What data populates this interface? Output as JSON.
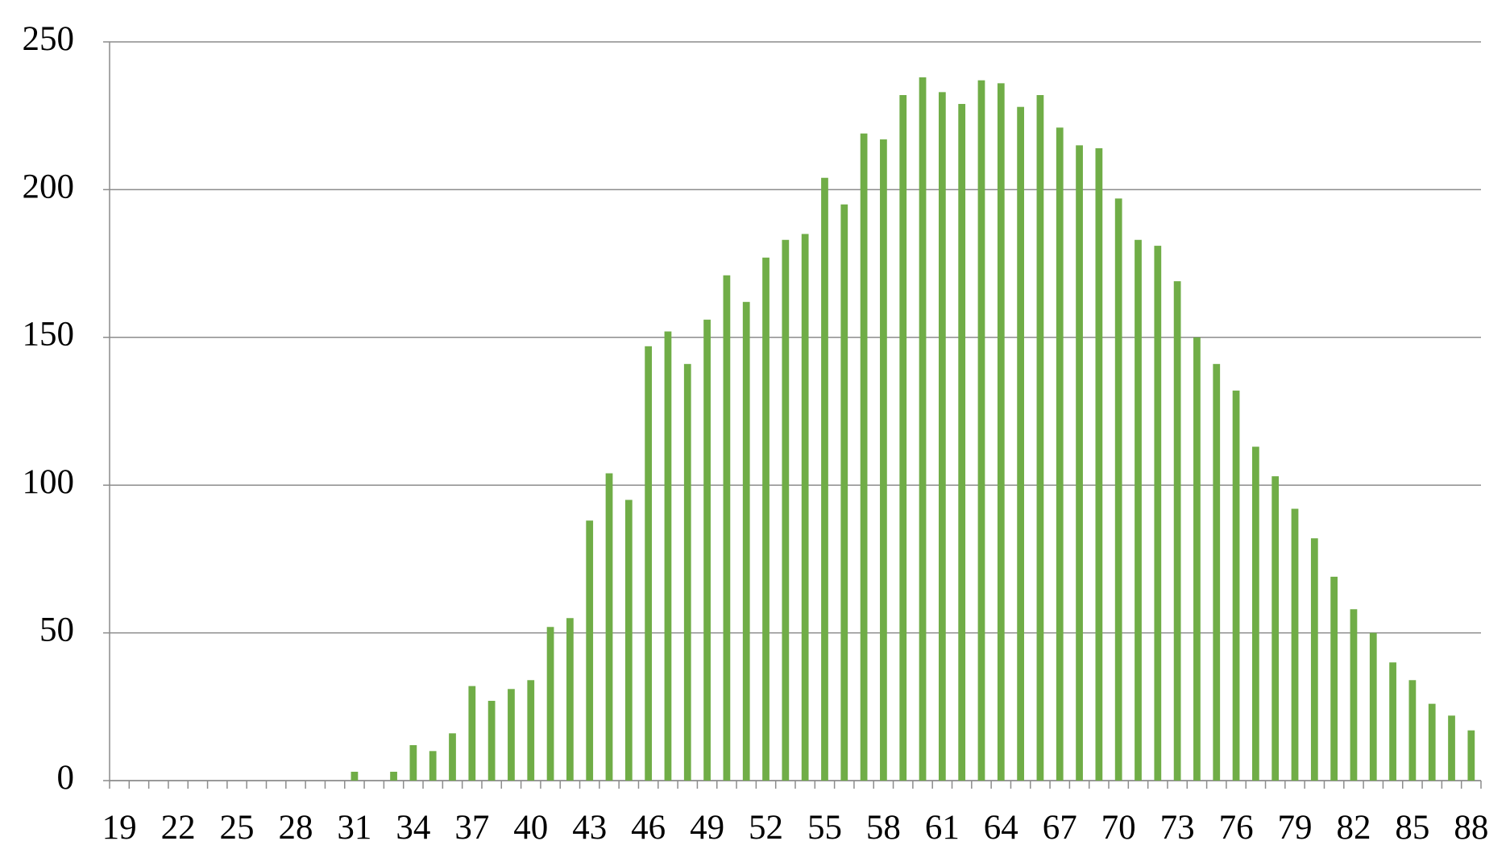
{
  "chart_data": {
    "type": "bar",
    "categories": [
      "19",
      null,
      null,
      "22",
      null,
      null,
      "25",
      null,
      null,
      "28",
      null,
      null,
      "31",
      null,
      null,
      "34",
      null,
      null,
      "37",
      null,
      null,
      "40",
      null,
      null,
      "43",
      null,
      null,
      "46",
      null,
      null,
      "49",
      null,
      null,
      "52",
      null,
      null,
      "55",
      null,
      null,
      "58",
      null,
      null,
      "61",
      null,
      null,
      "64",
      null,
      null,
      "67",
      null,
      null,
      "70",
      null,
      null,
      "73",
      null,
      null,
      "76",
      null,
      null,
      "79",
      null,
      null,
      "82",
      null,
      null,
      "85",
      null,
      null,
      "88"
    ],
    "values": [
      0,
      0,
      0,
      0,
      0,
      0,
      0,
      0,
      0,
      0,
      0,
      0,
      3,
      0,
      3,
      12,
      10,
      16,
      32,
      27,
      31,
      34,
      52,
      55,
      88,
      104,
      95,
      147,
      152,
      141,
      156,
      171,
      162,
      177,
      183,
      185,
      204,
      195,
      219,
      217,
      232,
      238,
      233,
      229,
      237,
      236,
      228,
      232,
      221,
      215,
      214,
      197,
      183,
      181,
      169,
      150,
      141,
      132,
      113,
      103,
      92,
      82,
      69,
      58,
      50,
      40,
      34,
      26,
      22,
      17
    ],
    "color": "#70ad47",
    "ylim": [
      0,
      250
    ],
    "yticks": [
      0,
      50,
      100,
      150,
      200,
      250
    ],
    "grid": true
  }
}
